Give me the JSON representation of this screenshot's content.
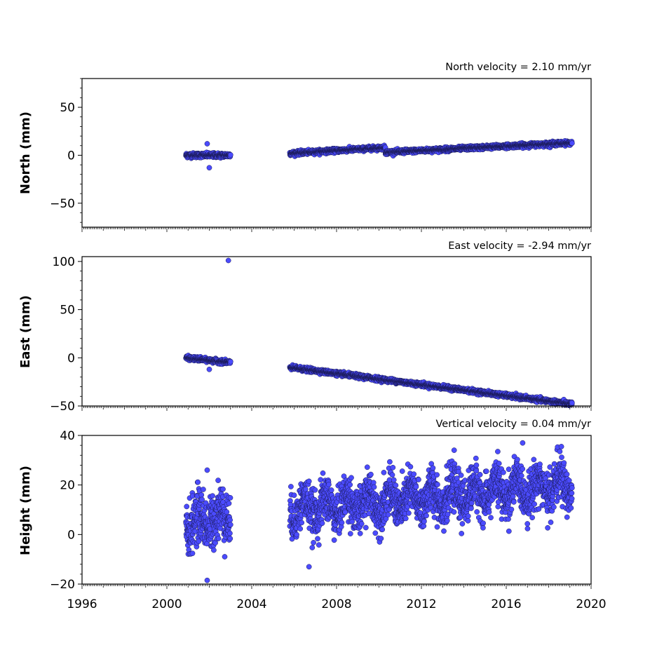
{
  "chart_data": [
    {
      "type": "scatter",
      "title": "North velocity = 2.10 mm/yr",
      "ylabel": "North (mm)",
      "xlim": [
        1996,
        2020
      ],
      "ylim": [
        -75,
        80
      ],
      "yticks": [
        -50,
        0,
        50
      ],
      "ytick_labels": [
        "−50",
        "0",
        "50"
      ],
      "point_color": "#4b4bff",
      "segments": [
        {
          "x_start": 2000.9,
          "x_end": 2003.0,
          "y_start": 0,
          "y_end": 0,
          "noise": 1.2
        },
        {
          "x_start": 2005.8,
          "x_end": 2010.3,
          "y_start": 2,
          "y_end": 8,
          "noise": 1.0
        },
        {
          "x_start": 2010.3,
          "x_end": 2019.1,
          "y_start": 3,
          "y_end": 13,
          "noise": 1.0
        }
      ],
      "outliers": [
        {
          "x": 2001.9,
          "y": 12
        },
        {
          "x": 2002.0,
          "y": -13
        }
      ]
    },
    {
      "type": "scatter",
      "title": "East velocity = -2.94 mm/yr",
      "ylabel": "East (mm)",
      "xlim": [
        1996,
        2020
      ],
      "ylim": [
        -50,
        105
      ],
      "yticks": [
        -50,
        0,
        50,
        100
      ],
      "ytick_labels": [
        "−50",
        "0",
        "50",
        "100"
      ],
      "point_color": "#4b4bff",
      "segments": [
        {
          "x_start": 2000.9,
          "x_end": 2003.0,
          "y_start": 0,
          "y_end": -5,
          "noise": 1.0
        },
        {
          "x_start": 2005.8,
          "x_end": 2019.1,
          "y_start": -10,
          "y_end": -48,
          "noise": 1.0
        }
      ],
      "outliers": [
        {
          "x": 2002.9,
          "y": 101
        },
        {
          "x": 2002.0,
          "y": -12
        }
      ]
    },
    {
      "type": "scatter",
      "title": "Vertical velocity = 0.04 mm/yr",
      "ylabel": "Height (mm)",
      "xlim": [
        1996,
        2020
      ],
      "ylim": [
        -20,
        40
      ],
      "yticks": [
        -20,
        0,
        20,
        40
      ],
      "ytick_labels": [
        "−20",
        "0",
        "20",
        "40"
      ],
      "xticks": [
        1996,
        2000,
        2004,
        2008,
        2012,
        2016,
        2020
      ],
      "xtick_labels": [
        "1996",
        "2000",
        "2004",
        "2008",
        "2012",
        "2016",
        "2020"
      ],
      "point_color": "#4b4bff",
      "segments": [
        {
          "x_start": 2000.9,
          "x_end": 2003.0,
          "y_start": 4,
          "y_end": 8,
          "noise": 5.5,
          "seasonal": 3
        },
        {
          "x_start": 2005.8,
          "x_end": 2019.1,
          "y_start": 10,
          "y_end": 20,
          "noise": 4.5,
          "seasonal": 4
        }
      ],
      "outliers": [
        {
          "x": 2001.9,
          "y": -18.5
        },
        {
          "x": 2001.9,
          "y": 26
        },
        {
          "x": 2018.6,
          "y": 35.5
        },
        {
          "x": 2015.6,
          "y": 33.5
        },
        {
          "x": 2006.7,
          "y": -13
        }
      ]
    }
  ]
}
